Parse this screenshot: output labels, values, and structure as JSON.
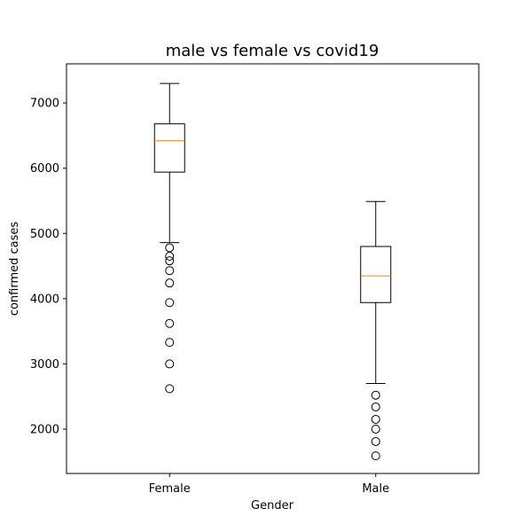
{
  "chart_data": {
    "type": "box",
    "title": "male vs female vs covid19",
    "xlabel": "Gender",
    "ylabel": "confirmed cases",
    "categories": [
      "Female",
      "Male"
    ],
    "ylim": [
      1320,
      7600
    ],
    "yticks": [
      2000,
      3000,
      4000,
      5000,
      6000,
      7000
    ],
    "grid": false,
    "boxes": [
      {
        "category": "Female",
        "whisker_low": 4860,
        "q1": 5940,
        "median": 6420,
        "q3": 6680,
        "whisker_high": 7300,
        "outliers": [
          4780,
          4650,
          4580,
          4430,
          4240,
          3940,
          3620,
          3330,
          3000,
          2620
        ]
      },
      {
        "category": "Male",
        "whisker_low": 2700,
        "q1": 3940,
        "median": 4350,
        "q3": 4800,
        "whisker_high": 5490,
        "outliers": [
          2520,
          2340,
          2150,
          2000,
          1810,
          1590
        ]
      }
    ],
    "colors": {
      "box": "#000000",
      "median": "#ff7f0e",
      "outlier": "#000000"
    }
  }
}
